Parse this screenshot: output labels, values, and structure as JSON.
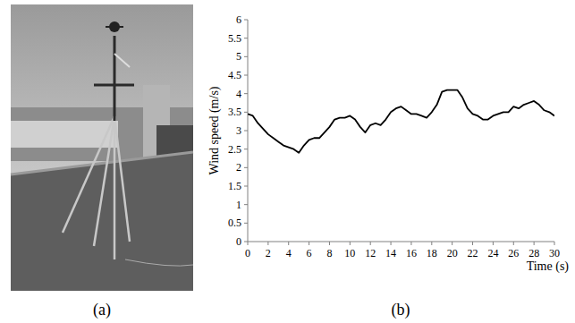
{
  "chart_data": {
    "type": "line",
    "x_label": "Time (s)",
    "y_label": "Wind speed (m/s)",
    "x": [
      0,
      0.5,
      1,
      1.5,
      2,
      2.5,
      3,
      3.5,
      4,
      4.5,
      5,
      5.5,
      6,
      6.5,
      7,
      7.5,
      8,
      8.5,
      9,
      9.5,
      10,
      10.5,
      11,
      11.5,
      12,
      12.5,
      13,
      13.5,
      14,
      14.5,
      15,
      15.5,
      16,
      16.5,
      17,
      17.5,
      18,
      18.5,
      19,
      19.5,
      20,
      20.5,
      21,
      21.5,
      22,
      22.5,
      23,
      23.5,
      24,
      24.5,
      25,
      25.5,
      26,
      26.5,
      27,
      27.5,
      28,
      28.5,
      29,
      29.5,
      30
    ],
    "values": [
      3.45,
      3.4,
      3.2,
      3.05,
      2.9,
      2.8,
      2.7,
      2.6,
      2.55,
      2.5,
      2.4,
      2.6,
      2.75,
      2.8,
      2.8,
      2.95,
      3.1,
      3.3,
      3.35,
      3.35,
      3.4,
      3.3,
      3.1,
      2.95,
      3.15,
      3.2,
      3.15,
      3.3,
      3.5,
      3.6,
      3.65,
      3.55,
      3.45,
      3.45,
      3.4,
      3.35,
      3.5,
      3.7,
      4.05,
      4.1,
      4.1,
      4.1,
      3.9,
      3.6,
      3.45,
      3.4,
      3.3,
      3.3,
      3.4,
      3.45,
      3.5,
      3.5,
      3.65,
      3.6,
      3.7,
      3.75,
      3.8,
      3.7,
      3.55,
      3.5,
      3.4
    ],
    "color": "#000000",
    "xlim": [
      0,
      30
    ],
    "xticks": [
      0,
      2,
      4,
      6,
      8,
      10,
      12,
      14,
      16,
      18,
      20,
      22,
      24,
      26,
      28,
      30
    ],
    "ylim": [
      0,
      6
    ],
    "yticks": [
      0,
      0.5,
      1,
      1.5,
      2,
      2.5,
      3,
      3.5,
      4,
      4.5,
      5,
      5.5,
      6
    ],
    "grid": false
  },
  "panel_labels": {
    "a": "(a)",
    "b": "(b)"
  }
}
